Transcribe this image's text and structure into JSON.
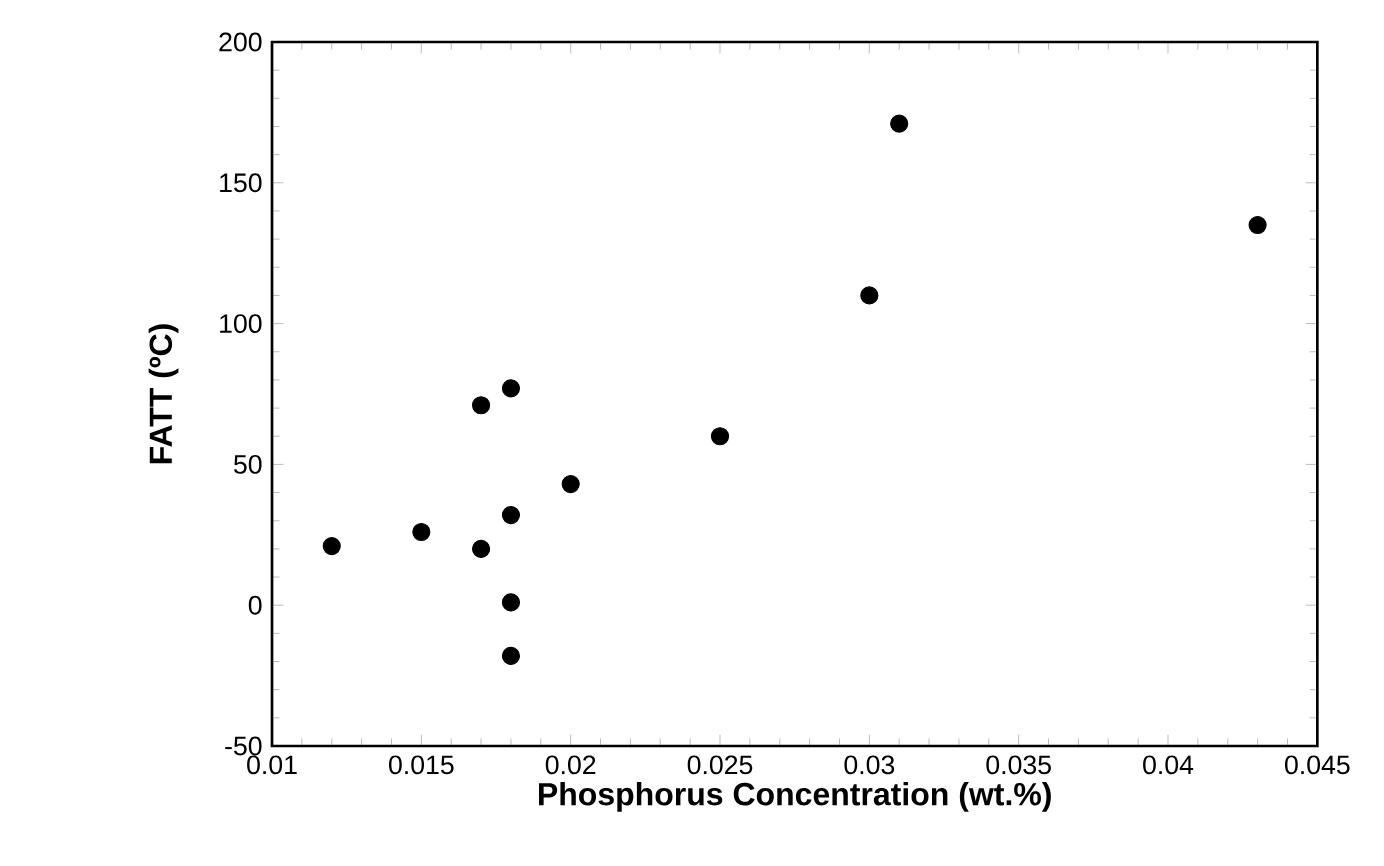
{
  "chart_data": {
    "type": "scatter",
    "xlabel": "Phosphorus Concentration  (wt.%)",
    "ylabel": "FATT  (ºC)",
    "x": [
      0.012,
      0.015,
      0.017,
      0.017,
      0.018,
      0.018,
      0.018,
      0.018,
      0.02,
      0.025,
      0.03,
      0.031,
      0.043
    ],
    "values": [
      21,
      26,
      71,
      20,
      77,
      32,
      1,
      -18,
      43,
      60,
      110,
      171,
      135
    ],
    "color": "#000000",
    "marker": "circle",
    "grid": false,
    "xlim": [
      0.01,
      0.045
    ],
    "xticks": [
      0.01,
      0.015,
      0.02,
      0.025,
      0.03,
      0.035,
      0.04,
      0.045
    ],
    "ylim": [
      -50,
      200
    ],
    "yticks": [
      -50,
      0,
      50,
      100,
      150,
      200
    ]
  }
}
